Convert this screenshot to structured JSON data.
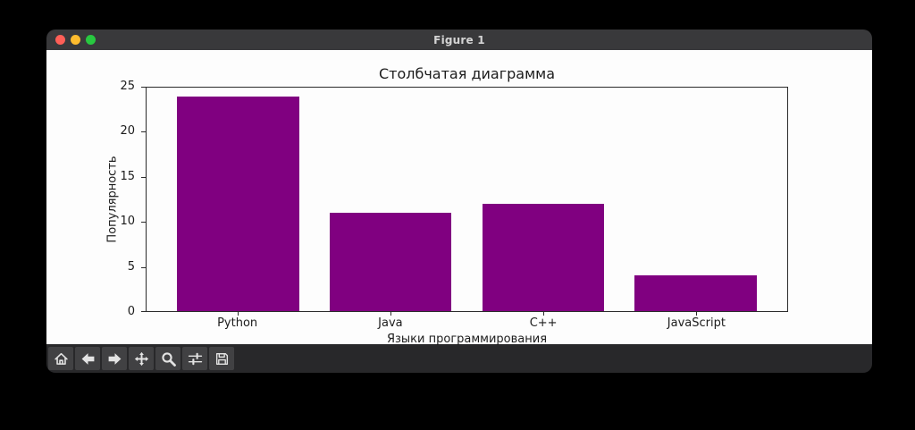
{
  "window": {
    "title": "Figure 1",
    "traffic_lights": {
      "close_color": "#ff5f57",
      "minimize_color": "#febc2e",
      "zoom_color": "#28c840"
    },
    "titlebar_color": "#39393b",
    "canvas_color": "#fdfdfd",
    "toolbar_color": "#28282a"
  },
  "toolbar": {
    "buttons": [
      {
        "icon": "home-icon"
      },
      {
        "icon": "back-icon"
      },
      {
        "icon": "forward-icon"
      },
      {
        "icon": "pan-icon"
      },
      {
        "icon": "zoom-icon"
      },
      {
        "icon": "subplots-icon"
      },
      {
        "icon": "save-icon"
      }
    ]
  },
  "chart_data": {
    "type": "bar",
    "title": "Столбчатая диаграмма",
    "xlabel": "Языки программирования",
    "ylabel": "Популярность",
    "categories": [
      "Python",
      "Java",
      "C++",
      "JavaScript"
    ],
    "values": [
      24,
      11,
      12,
      4
    ],
    "ylim": [
      0,
      25
    ],
    "yticks": [
      0,
      5,
      10,
      15,
      20,
      25
    ],
    "bar_color": "#800080",
    "spine_color": "#2b2b2b",
    "grid": false,
    "legend": "none"
  }
}
